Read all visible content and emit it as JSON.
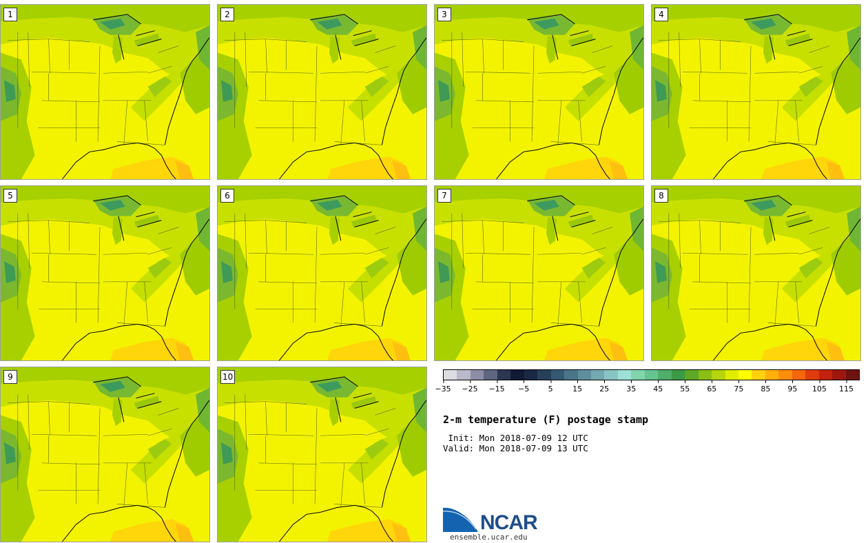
{
  "panels": [
    {
      "label": "1"
    },
    {
      "label": "2"
    },
    {
      "label": "3"
    },
    {
      "label": "4"
    },
    {
      "label": "5"
    },
    {
      "label": "6"
    },
    {
      "label": "7"
    },
    {
      "label": "8"
    },
    {
      "label": "9"
    },
    {
      "label": "10"
    }
  ],
  "colorbar": {
    "colors": [
      "#dcdde2",
      "#b9b9c9",
      "#8d8ea6",
      "#5f6681",
      "#2c3552",
      "#111a35",
      "#1a2845",
      "#26405a",
      "#355a74",
      "#4a7588",
      "#5f8f9c",
      "#73a9b0",
      "#88c4c3",
      "#9de0d6",
      "#82d4ac",
      "#66c490",
      "#4fae6a",
      "#3b9a46",
      "#5ea826",
      "#8cbf16",
      "#b6d50c",
      "#e1ec03",
      "#ffff00",
      "#ffd10e",
      "#ffb00d",
      "#ff8d0c",
      "#f5660d",
      "#e13c0d",
      "#c3220f",
      "#9e170f",
      "#6e1410"
    ],
    "tick_labels": [
      "−35",
      "−25",
      "−15",
      "−5",
      "5",
      "15",
      "25",
      "35",
      "45",
      "55",
      "65",
      "75",
      "85",
      "95",
      "105",
      "115"
    ]
  },
  "title": "2-m temperature (F) postage stamp",
  "init": " Init: Mon 2018-07-09 12 UTC",
  "valid": "Valid: Mon 2018-07-09 13 UTC",
  "logo": {
    "name": "NCAR",
    "url": "ensemble.ucar.edu"
  }
}
